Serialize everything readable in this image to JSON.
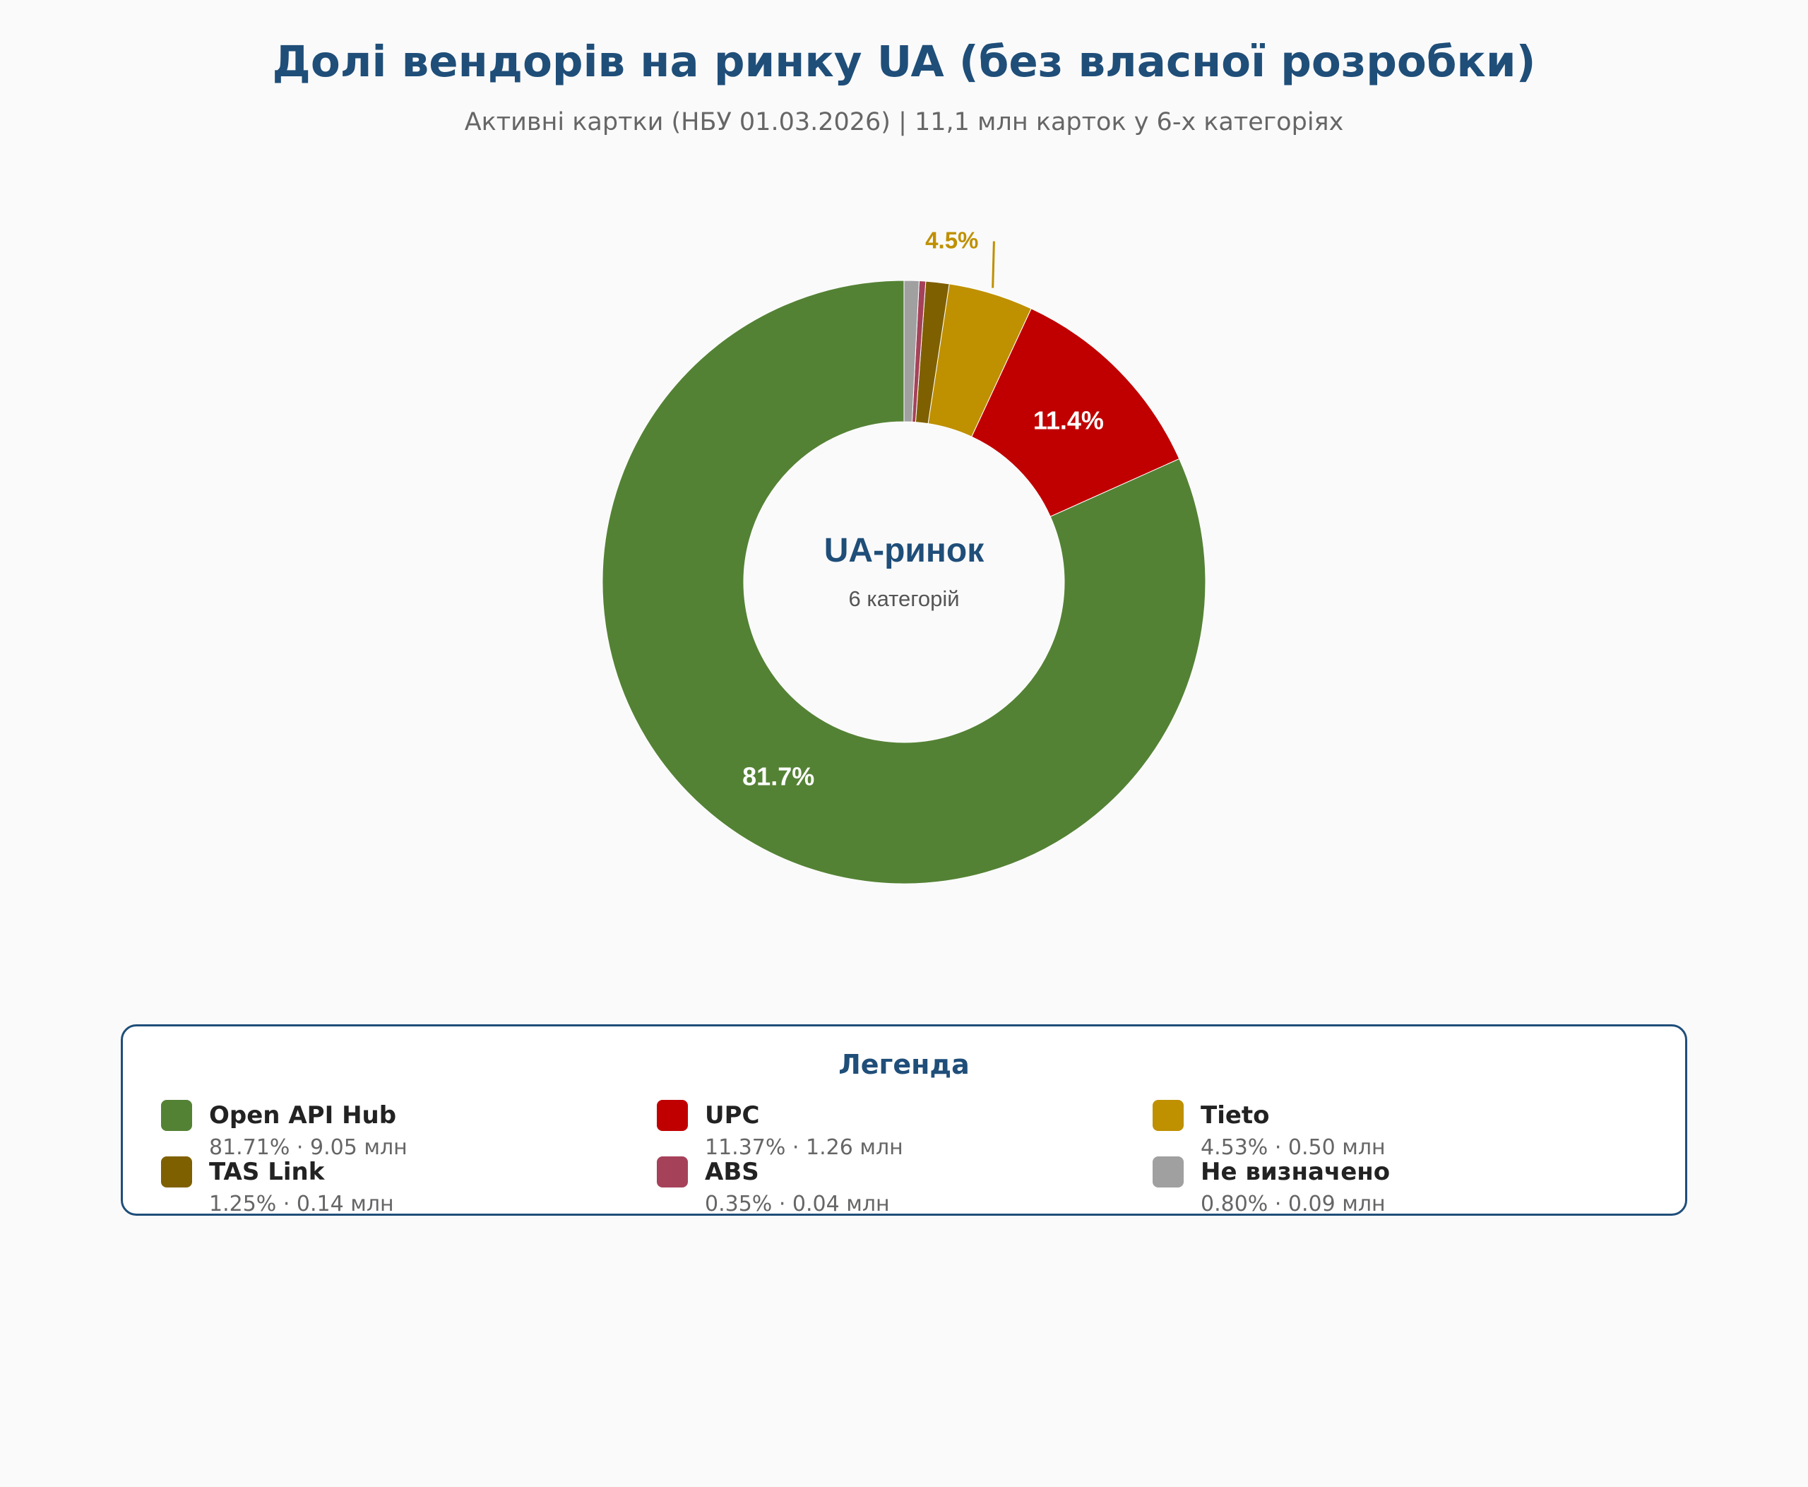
{
  "header": {
    "title": "Долі вендорів на ринку UA (без власної розробки)",
    "subtitle": "Активні картки (НБУ 01.03.2026) | 11,1 млн карток у 6-х категоріях"
  },
  "center": {
    "title": "UA-ринок",
    "subtitle": "6 категорій"
  },
  "legend": {
    "title": "Легенда",
    "separator": "·",
    "unit": "млн"
  },
  "chart_data": {
    "type": "pie",
    "variant": "donut",
    "title": "Долі вендорів на ринку UA (без власної розробки)",
    "series": [
      {
        "name": "Open API Hub",
        "percent": 81.71,
        "value": 9.05,
        "label": "81.7%",
        "label_style": "inside",
        "color": "#548235",
        "legend_percent": "81.71%",
        "legend_value": "9.05"
      },
      {
        "name": "UPC",
        "percent": 11.37,
        "value": 1.26,
        "label": "11.4%",
        "label_style": "inside",
        "color": "#c00000",
        "legend_percent": "11.37%",
        "legend_value": "1.26"
      },
      {
        "name": "Tieto",
        "percent": 4.53,
        "value": 0.5,
        "label": "4.5%",
        "label_style": "outside",
        "color": "#bf9000",
        "legend_percent": "4.53%",
        "legend_value": "0.50"
      },
      {
        "name": "TAS Link",
        "percent": 1.25,
        "value": 0.14,
        "label": "",
        "label_style": "none",
        "color": "#7f6000",
        "legend_percent": "1.25%",
        "legend_value": "0.14"
      },
      {
        "name": "ABS",
        "percent": 0.35,
        "value": 0.04,
        "label": "",
        "label_style": "none",
        "color": "#a5425a",
        "legend_percent": "0.35%",
        "legend_value": "0.04"
      },
      {
        "name": "Не визначено",
        "percent": 0.8,
        "value": 0.09,
        "label": "",
        "label_style": "none",
        "color": "#a0a0a0",
        "legend_percent": "0.80%",
        "legend_value": "0.09"
      }
    ],
    "direction": "clockwise-from-top-drawn-reverse",
    "legend_placement": "bottom"
  }
}
